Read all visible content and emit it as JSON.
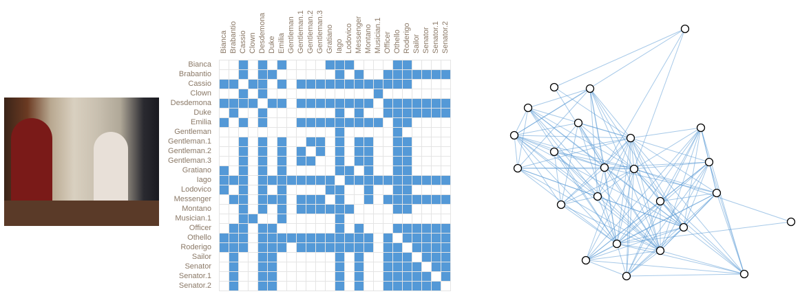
{
  "characters": [
    "Bianca",
    "Brabantio",
    "Cassio",
    "Clown",
    "Desdemona",
    "Duke",
    "Emilia",
    "Gentleman",
    "Gentleman.1",
    "Gentleman.2",
    "Gentleman.3",
    "Gratiano",
    "Iago",
    "Lodovico",
    "Messenger",
    "Montano",
    "Musician.1",
    "Officer",
    "Othello",
    "Roderigo",
    "Sailor",
    "Senator",
    "Senator.1",
    "Senator.2"
  ],
  "adjacency": [
    [
      2,
      4,
      6,
      11,
      12,
      13,
      18,
      19
    ],
    [
      2,
      4,
      5,
      12,
      14,
      17,
      18,
      19,
      20,
      21,
      22,
      23
    ],
    [
      0,
      1,
      3,
      4,
      6,
      8,
      9,
      10,
      11,
      12,
      13,
      14,
      15,
      16,
      17,
      18,
      19
    ],
    [
      2,
      4,
      16
    ],
    [
      0,
      1,
      2,
      3,
      5,
      6,
      8,
      9,
      10,
      11,
      12,
      13,
      14,
      15,
      17,
      18,
      19,
      20,
      21,
      22,
      23
    ],
    [
      1,
      4,
      12,
      14,
      17,
      18,
      19,
      20,
      21,
      22,
      23
    ],
    [
      0,
      2,
      4,
      8,
      9,
      10,
      11,
      12,
      13,
      14,
      15,
      16,
      18,
      19
    ],
    [
      12,
      18
    ],
    [
      2,
      4,
      6,
      9,
      10,
      12,
      14,
      15,
      18,
      19
    ],
    [
      2,
      4,
      6,
      8,
      10,
      12,
      14,
      15,
      18,
      19
    ],
    [
      2,
      4,
      6,
      8,
      9,
      12,
      14,
      15,
      18,
      19
    ],
    [
      0,
      2,
      4,
      6,
      12,
      13,
      15,
      18,
      19
    ],
    [
      0,
      1,
      2,
      4,
      5,
      6,
      7,
      8,
      9,
      10,
      11,
      13,
      14,
      15,
      16,
      17,
      18,
      19,
      20,
      21,
      22,
      23
    ],
    [
      0,
      2,
      4,
      6,
      11,
      12,
      15,
      18,
      19
    ],
    [
      1,
      2,
      4,
      5,
      6,
      8,
      9,
      10,
      12,
      15,
      17,
      18,
      19,
      20,
      21,
      22,
      23
    ],
    [
      2,
      4,
      6,
      8,
      9,
      10,
      11,
      12,
      13,
      18,
      19
    ],
    [
      2,
      3,
      6,
      12
    ],
    [
      1,
      2,
      4,
      5,
      12,
      14,
      18,
      19,
      20,
      21,
      22,
      23
    ],
    [
      0,
      1,
      2,
      4,
      5,
      6,
      7,
      8,
      9,
      10,
      11,
      12,
      13,
      14,
      15,
      17,
      19,
      20,
      21,
      22,
      23
    ],
    [
      0,
      1,
      2,
      4,
      5,
      6,
      8,
      9,
      10,
      11,
      12,
      13,
      14,
      15,
      17,
      18,
      20,
      21,
      22,
      23
    ],
    [
      1,
      4,
      5,
      12,
      14,
      17,
      18,
      19,
      21,
      22,
      23
    ],
    [
      1,
      4,
      5,
      12,
      14,
      17,
      18,
      19,
      20,
      22,
      23
    ],
    [
      1,
      4,
      5,
      12,
      14,
      17,
      18,
      19,
      20,
      21,
      23
    ],
    [
      1,
      4,
      5,
      12,
      14,
      17,
      18,
      19,
      20,
      21,
      22
    ]
  ],
  "colors": {
    "filled": "#5499d7",
    "empty": "#ffffff",
    "grid": "#e4e4e4",
    "label": "#8a7866",
    "edge": "#5b9bd5",
    "node_fill": "#ffffff",
    "node_stroke": "#000000"
  }
}
